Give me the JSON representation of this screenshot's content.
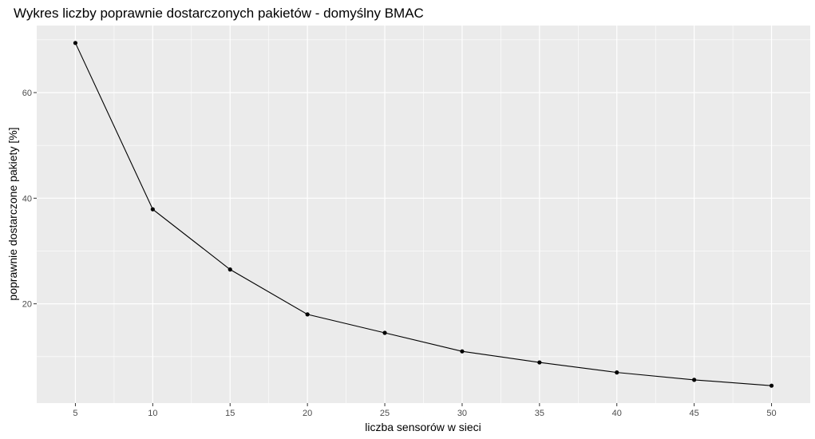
{
  "chart_data": {
    "type": "line",
    "title": "Wykres liczby poprawnie dostarczonych pakietów - domyślny BMAC",
    "xlabel": "liczba sensorów w sieci",
    "ylabel": "poprawnie dostarczone pakiety [%]",
    "x": [
      5,
      10,
      15,
      20,
      25,
      30,
      35,
      40,
      45,
      50
    ],
    "series": [
      {
        "values": [
          69.4,
          37.9,
          26.5,
          18.0,
          14.5,
          11.0,
          8.9,
          7.0,
          5.6,
          4.5
        ]
      }
    ],
    "xlim": [
      2.5,
      52.5
    ],
    "ylim": [
      1.2,
      72.7
    ],
    "x_ticks": [
      5,
      10,
      15,
      20,
      25,
      30,
      35,
      40,
      45,
      50
    ],
    "y_ticks": [
      20,
      40,
      60
    ],
    "x_minor_ticks": [
      7.5,
      12.5,
      17.5,
      22.5,
      27.5,
      32.5,
      37.5,
      42.5,
      47.5
    ],
    "y_minor_ticks": [
      10,
      30,
      50,
      70
    ],
    "grid": true,
    "legend": false,
    "colors": {
      "panel_background": "#ebebeb",
      "grid_line": "#ffffff",
      "series_line": "#000000",
      "point": "#000000",
      "tick_text": "#4d4d4d",
      "tick_mark": "#333333"
    }
  }
}
